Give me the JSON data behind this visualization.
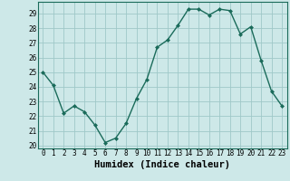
{
  "x": [
    0,
    1,
    2,
    3,
    4,
    5,
    6,
    7,
    8,
    9,
    10,
    11,
    12,
    13,
    14,
    15,
    16,
    17,
    18,
    19,
    20,
    21,
    22,
    23
  ],
  "y": [
    25.0,
    24.1,
    22.2,
    22.7,
    22.3,
    21.4,
    20.2,
    20.5,
    21.5,
    23.2,
    24.5,
    26.7,
    27.2,
    28.2,
    29.3,
    29.3,
    28.9,
    29.3,
    29.2,
    27.6,
    28.1,
    25.8,
    23.7,
    22.7
  ],
  "line_color": "#1a6b5a",
  "marker": "D",
  "marker_size": 2.0,
  "line_width": 1.0,
  "bg_color": "#cde8e8",
  "grid_color": "#9fc8c8",
  "xlabel": "Humidex (Indice chaleur)",
  "xlabel_fontsize": 7.5,
  "tick_fontsize": 5.5,
  "ylim": [
    19.8,
    29.8
  ],
  "xlim": [
    -0.5,
    23.5
  ],
  "yticks": [
    20,
    21,
    22,
    23,
    24,
    25,
    26,
    27,
    28,
    29
  ]
}
